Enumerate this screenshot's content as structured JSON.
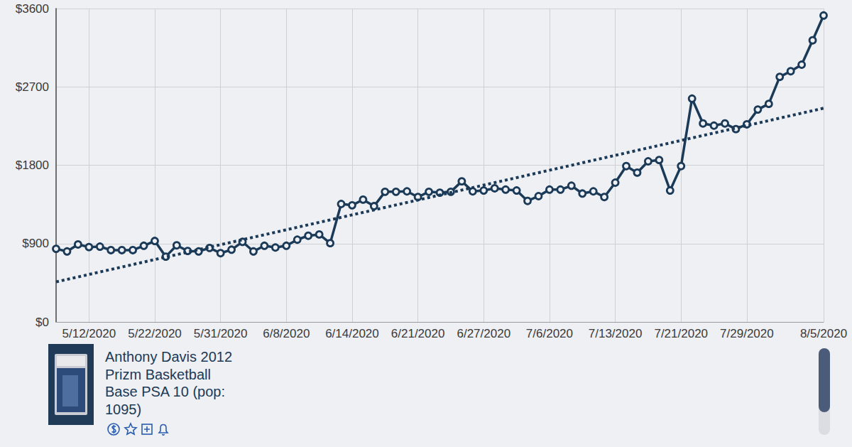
{
  "chart_data": {
    "type": "line",
    "categories": [
      null,
      null,
      null,
      "5/12/2020",
      null,
      null,
      null,
      null,
      null,
      "5/22/2020",
      null,
      null,
      null,
      null,
      null,
      "5/31/2020",
      null,
      null,
      null,
      null,
      null,
      "6/8/2020",
      null,
      null,
      null,
      null,
      null,
      "6/14/2020",
      null,
      null,
      null,
      null,
      null,
      "6/21/2020",
      null,
      null,
      null,
      null,
      null,
      "6/27/2020",
      null,
      null,
      null,
      null,
      null,
      "7/6/2020",
      null,
      null,
      null,
      null,
      null,
      "7/13/2020",
      null,
      null,
      null,
      null,
      null,
      "7/21/2020",
      null,
      null,
      null,
      null,
      null,
      "7/29/2020",
      null,
      null,
      null,
      null,
      null,
      null,
      "8/5/2020"
    ],
    "series": [
      {
        "color": "#1b3a57",
        "marker": "circle",
        "line_style": "solid",
        "values": [
          840,
          810,
          890,
          860,
          865,
          825,
          825,
          825,
          875,
          930,
          750,
          880,
          815,
          810,
          850,
          790,
          830,
          920,
          810,
          875,
          855,
          875,
          945,
          990,
          1005,
          905,
          1355,
          1340,
          1405,
          1330,
          1495,
          1495,
          1500,
          1435,
          1495,
          1485,
          1495,
          1615,
          1500,
          1510,
          1535,
          1520,
          1510,
          1390,
          1445,
          1520,
          1520,
          1565,
          1475,
          1500,
          1435,
          1600,
          1790,
          1715,
          1845,
          1860,
          1510,
          1790,
          2565,
          2280,
          2255,
          2280,
          2215,
          2270,
          2440,
          2505,
          2815,
          2880,
          2955,
          3235,
          3520
        ]
      }
    ],
    "trend": {
      "start": 460,
      "end": 2455,
      "color": "#1b3a57",
      "line_style": "dotted"
    },
    "ylim": [
      0,
      3600
    ],
    "yticks": [
      {
        "value": 0,
        "label": "$0"
      },
      {
        "value": 900,
        "label": "$900"
      },
      {
        "value": 1800,
        "label": "$1800"
      },
      {
        "value": 2700,
        "label": "$2700"
      },
      {
        "value": 3600,
        "label": "$3600"
      }
    ],
    "grid": true
  },
  "card": {
    "title": "Anthony Davis 2012 Prizm Basketball Base PSA 10 (pop: 1095)"
  }
}
